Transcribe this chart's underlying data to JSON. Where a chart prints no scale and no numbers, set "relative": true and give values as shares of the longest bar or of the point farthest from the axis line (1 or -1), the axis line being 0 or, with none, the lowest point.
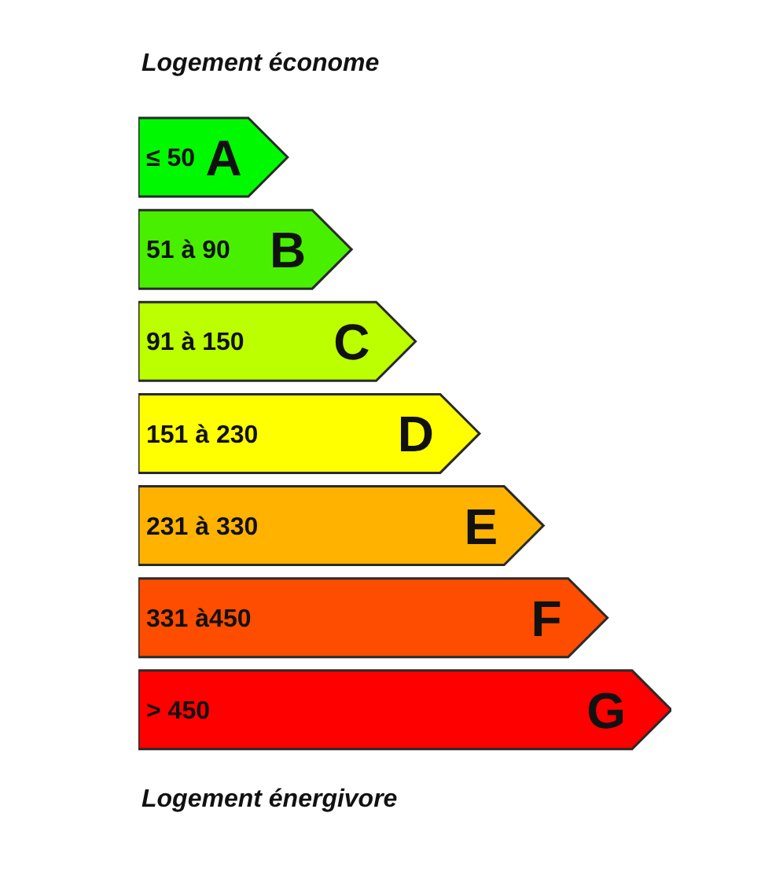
{
  "chart_data": {
    "type": "bar",
    "orientation": "horizontal",
    "relative": true,
    "title": "Logement économe",
    "annotations": [
      {
        "text": "A",
        "y": "≤ 50"
      },
      {
        "text": "B",
        "y": "51 à 90"
      },
      {
        "text": "C",
        "y": "91 à 150"
      },
      {
        "text": "D",
        "y": "151 à 230"
      },
      {
        "text": "E",
        "y": "231 à 330"
      },
      {
        "text": "F",
        "y": "331 à450"
      },
      {
        "text": "G",
        "y": "> 450"
      },
      "Logement énergivore"
    ],
    "categories": [
      "≤ 50",
      "51 à 90",
      "91 à 150",
      "151 à 230",
      "231 à 330",
      "331 à450",
      "> 450"
    ],
    "values": [
      0.28,
      0.4,
      0.52,
      0.64,
      0.76,
      0.88,
      1
    ],
    "colors": [
      "#00f800",
      "#48f000",
      "#bbff00",
      "#ffff00",
      "#ffb300",
      "#ff4d00",
      "#ff0000"
    ]
  }
}
